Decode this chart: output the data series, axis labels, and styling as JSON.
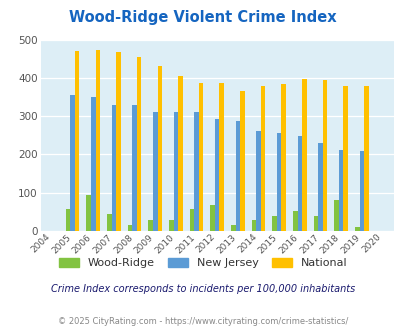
{
  "title": "Wood-Ridge Violent Crime Index",
  "years": [
    2004,
    2005,
    2006,
    2007,
    2008,
    2009,
    2010,
    2011,
    2012,
    2013,
    2014,
    2015,
    2016,
    2017,
    2018,
    2019,
    2020
  ],
  "wood_ridge": [
    0,
    57,
    93,
    44,
    15,
    30,
    30,
    57,
    67,
    15,
    28,
    40,
    52,
    40,
    80,
    10,
    0
  ],
  "new_jersey": [
    0,
    355,
    350,
    330,
    330,
    312,
    310,
    310,
    292,
    288,
    260,
    255,
    247,
    231,
    211,
    208,
    0
  ],
  "national": [
    0,
    469,
    473,
    467,
    455,
    432,
    405,
    387,
    387,
    367,
    378,
    384,
    397,
    394,
    380,
    379,
    0
  ],
  "color_woodridge": "#82c341",
  "color_nj": "#5b9bd5",
  "color_national": "#ffc000",
  "plot_bg": "#ddeef6",
  "ylim": [
    0,
    500
  ],
  "yticks": [
    0,
    100,
    200,
    300,
    400,
    500
  ],
  "title_color": "#1565c0",
  "subtitle": "Crime Index corresponds to incidents per 100,000 inhabitants",
  "footer": "© 2025 CityRating.com - https://www.cityrating.com/crime-statistics/",
  "bar_width": 0.22,
  "legend_labels": [
    "Wood-Ridge",
    "New Jersey",
    "National"
  ]
}
